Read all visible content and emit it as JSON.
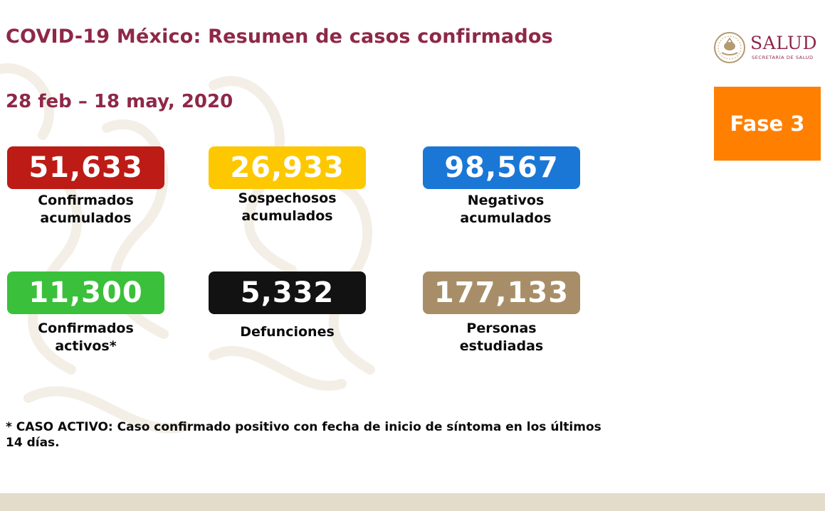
{
  "header": {
    "title": "COVID-19 México: Resumen de casos confirmados",
    "date_range": "28 feb – 18 may, 2020"
  },
  "logo": {
    "seal_icon": "mexico-coat-of-arms-icon",
    "name": "SALUD",
    "subtitle": "SECRETARÍA DE SALUD"
  },
  "phase": {
    "label": "Fase 3",
    "color": "#ff8000"
  },
  "stats": [
    {
      "value": "51,633",
      "label_line1": "Confirmados",
      "label_line2": "acumulados",
      "color": "#bc1b16"
    },
    {
      "value": "26,933",
      "label_line1": "Sospechosos",
      "label_line2": "acumulados",
      "color": "#fdc800"
    },
    {
      "value": "98,567",
      "label_line1": "Negativos",
      "label_line2": "acumulados",
      "color": "#1a77d6"
    },
    {
      "value": "11,300",
      "label_line1": "Confirmados",
      "label_line2": "activos*",
      "color": "#3ac03a"
    },
    {
      "value": "5,332",
      "label_line1": "Defunciones",
      "label_line2": "",
      "color": "#121212"
    },
    {
      "value": "177,133",
      "label_line1": "Personas",
      "label_line2": "estudiadas",
      "color": "#a88e68"
    }
  ],
  "footnote": {
    "line1": "* CASO ACTIVO: Caso confirmado positivo con fecha de inicio de síntoma en los últimos",
    "line2": "14 días."
  }
}
